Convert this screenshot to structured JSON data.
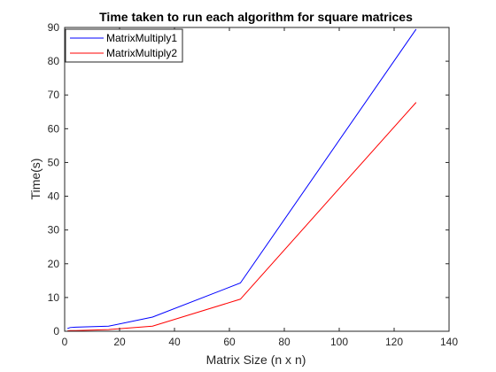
{
  "chart_data": {
    "type": "line",
    "title": "Time taken to run each algorithm for square matrices",
    "xlabel": "Matrix Size (n x n)",
    "ylabel": "Time(s)",
    "xlim": [
      0,
      140
    ],
    "ylim": [
      0,
      90
    ],
    "xticks": [
      0,
      20,
      40,
      60,
      80,
      100,
      120,
      140
    ],
    "yticks": [
      0,
      10,
      20,
      30,
      40,
      50,
      60,
      70,
      80,
      90
    ],
    "grid": false,
    "legend_position": "top-left",
    "series": [
      {
        "name": "MatrixMultiply1",
        "color": "#0000ff",
        "x": [
          1,
          2,
          4,
          8,
          16,
          32,
          64,
          128
        ],
        "y": [
          0.8,
          1.1,
          1.2,
          1.3,
          1.5,
          4.2,
          14.3,
          89.5
        ]
      },
      {
        "name": "MatrixMultiply2",
        "color": "#ff0000",
        "x": [
          1,
          2,
          4,
          8,
          16,
          32,
          64,
          128
        ],
        "y": [
          0.1,
          0.2,
          0.2,
          0.3,
          0.5,
          1.5,
          9.5,
          67.8
        ]
      }
    ]
  }
}
